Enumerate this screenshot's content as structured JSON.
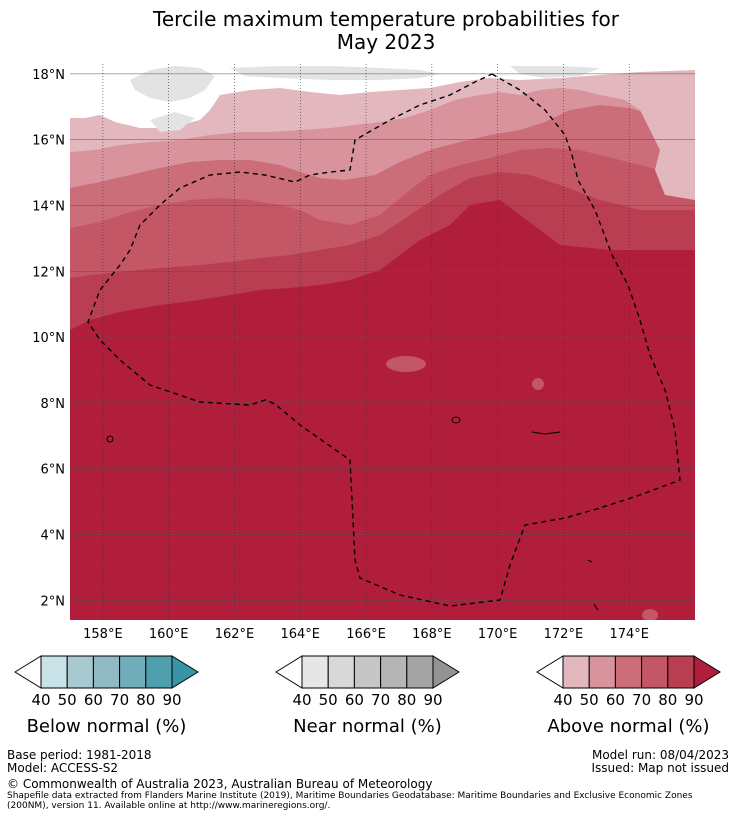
{
  "title": {
    "line1": "Tercile maximum temperature probabilities for",
    "line2": "May 2023"
  },
  "map": {
    "lat_labels": [
      "18°N",
      "16°N",
      "14°N",
      "12°N",
      "10°N",
      "8°N",
      "6°N",
      "4°N",
      "2°N"
    ],
    "lat_values": [
      18,
      16,
      14,
      12,
      10,
      8,
      6,
      4,
      2
    ],
    "lon_labels": [
      "158°E",
      "160°E",
      "162°E",
      "164°E",
      "166°E",
      "168°E",
      "170°E",
      "172°E",
      "174°E"
    ],
    "lon_values": [
      158,
      160,
      162,
      164,
      166,
      168,
      170,
      172,
      174
    ],
    "lon_range": [
      157,
      176
    ],
    "lat_range": [
      1.4,
      18.3
    ],
    "region": "Marshall Islands EEZ (dashed outline)"
  },
  "legends": {
    "below": {
      "label": "Below normal (%)",
      "ticks": [
        "40",
        "50",
        "60",
        "70",
        "80",
        "90"
      ],
      "colors": [
        "#c9e2e8",
        "#a8c9cf",
        "#8fbac3",
        "#72adba",
        "#4f9fae",
        "#3895a8"
      ]
    },
    "near": {
      "label": "Near normal (%)",
      "ticks": [
        "40",
        "50",
        "60",
        "70",
        "80",
        "90"
      ],
      "colors": [
        "#e6e6e6",
        "#d8d8d8",
        "#c6c6c6",
        "#b5b5b5",
        "#a4a4a4",
        "#939393"
      ]
    },
    "above": {
      "label": "Above normal (%)",
      "ticks": [
        "40",
        "50",
        "60",
        "70",
        "80",
        "90"
      ],
      "colors": [
        "#e2b7bd",
        "#d8939c",
        "#cc6e7a",
        "#c35766",
        "#b93e52",
        "#b01e3c"
      ]
    }
  },
  "footer": {
    "base_period": "Base period: 1981-2018",
    "model": "Model: ACCESS-S2",
    "model_run": "Model run: 08/04/2023",
    "issued": "Issued: Map not issued",
    "copyright": "© Commonwealth of Australia 2023, Australian Bureau of Meteorology",
    "shapefile_line1": "Shapefile data extracted from Flanders Marine Institute (2019), Maritime Boundaries Geodatabase: Maritime Boundaries and Exclusive Economic Zones",
    "shapefile_line2": "(200NM), version 11. Available online at http://www.marineregions.org/."
  }
}
